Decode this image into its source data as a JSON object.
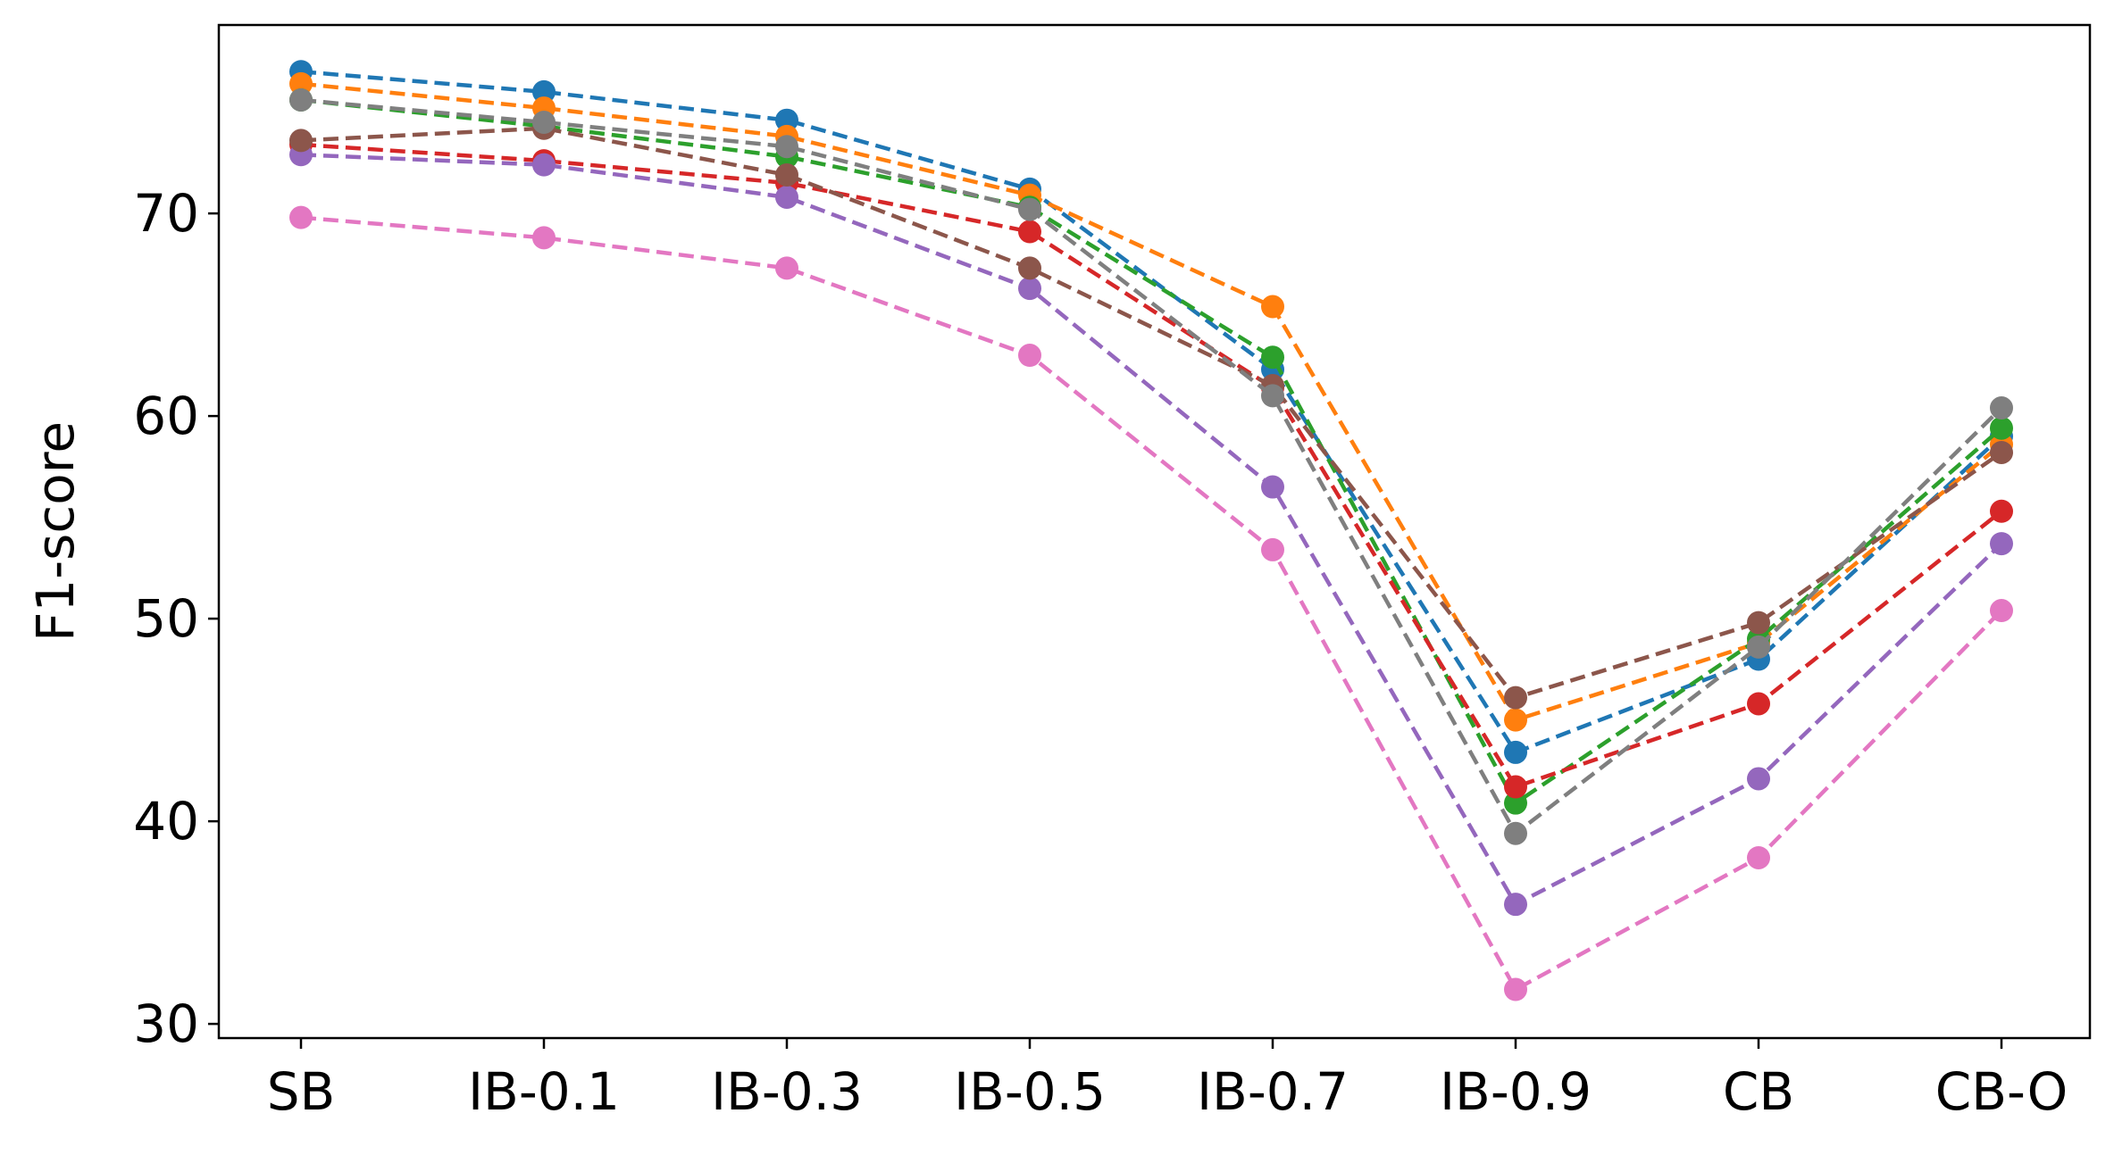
{
  "chart_data": {
    "type": "line",
    "title": "",
    "xlabel": "",
    "ylabel": "F1-score",
    "categories": [
      "SB",
      "IB-0.1",
      "IB-0.3",
      "IB-0.5",
      "IB-0.7",
      "IB-0.9",
      "CB",
      "CB-O"
    ],
    "ylim": [
      29.3,
      79.3
    ],
    "yticks": [
      30,
      40,
      50,
      60,
      70
    ],
    "grid": false,
    "legend": "none",
    "line_style": "dashed",
    "marker": "circle",
    "series": [
      {
        "color": "#1f77b4",
        "values": [
          77.0,
          76.0,
          74.6,
          71.2,
          62.3,
          43.4,
          48.0,
          59.0
        ]
      },
      {
        "color": "#ff7f0e",
        "values": [
          76.4,
          75.2,
          73.8,
          70.9,
          65.4,
          45.0,
          48.8,
          58.6
        ]
      },
      {
        "color": "#2ca02c",
        "values": [
          75.6,
          74.3,
          72.8,
          70.3,
          62.9,
          40.9,
          49.0,
          59.4
        ]
      },
      {
        "color": "#d62728",
        "values": [
          73.4,
          72.6,
          71.5,
          69.1,
          61.4,
          41.7,
          45.8,
          55.3
        ]
      },
      {
        "color": "#9467bd",
        "values": [
          72.9,
          72.4,
          70.8,
          66.3,
          56.5,
          35.9,
          42.1,
          53.7
        ]
      },
      {
        "color": "#8c564b",
        "values": [
          73.6,
          74.2,
          71.9,
          67.3,
          61.5,
          46.1,
          49.8,
          58.2
        ]
      },
      {
        "color": "#e377c2",
        "values": [
          69.8,
          68.8,
          67.3,
          63.0,
          53.4,
          31.7,
          38.2,
          50.4
        ]
      },
      {
        "color": "#7f7f7f",
        "values": [
          75.6,
          74.5,
          73.3,
          70.2,
          61.0,
          39.4,
          48.6,
          60.4
        ]
      }
    ]
  }
}
